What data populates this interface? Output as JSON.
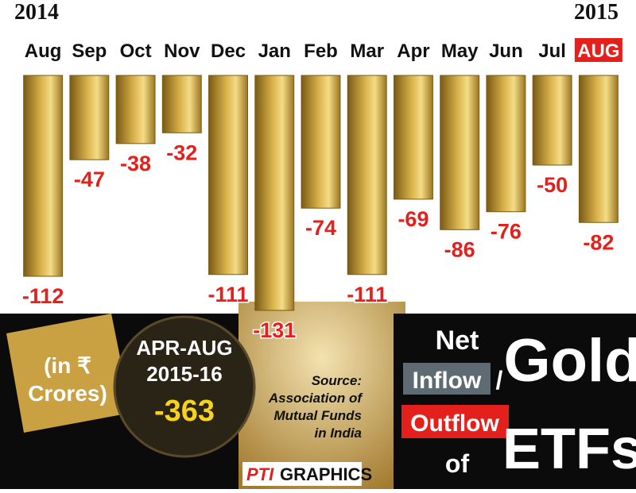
{
  "chart_data": {
    "type": "bar",
    "start_year": "2014",
    "end_year": "2015",
    "categories": [
      "Aug",
      "Sep",
      "Oct",
      "Nov",
      "Dec",
      "Jan",
      "Feb",
      "Mar",
      "Apr",
      "May",
      "Jun",
      "Jul",
      "AUG"
    ],
    "values": [
      -112,
      -47,
      -38,
      -32,
      -111,
      -131,
      -74,
      -111,
      -69,
      -86,
      -76,
      -50,
      -82
    ],
    "color": "#d9b24a",
    "label_color": "#e3201b",
    "ylim": [
      -135,
      0
    ],
    "unit_lines": [
      "(in ₹",
      "Crores)"
    ],
    "summary": {
      "period": "APR-AUG",
      "years": "2015-16",
      "total": -363
    },
    "source_lines": [
      "Source:",
      "Association of",
      "Mutual Funds",
      "in India"
    ],
    "credit": [
      "PTI",
      "GRAPHICS"
    ],
    "title": {
      "net": "Net",
      "inflow": "Inflow",
      "slash": "/",
      "outflow": "Outflow",
      "of": "of",
      "gold": "Gold",
      "etfs": "ETFs"
    }
  }
}
